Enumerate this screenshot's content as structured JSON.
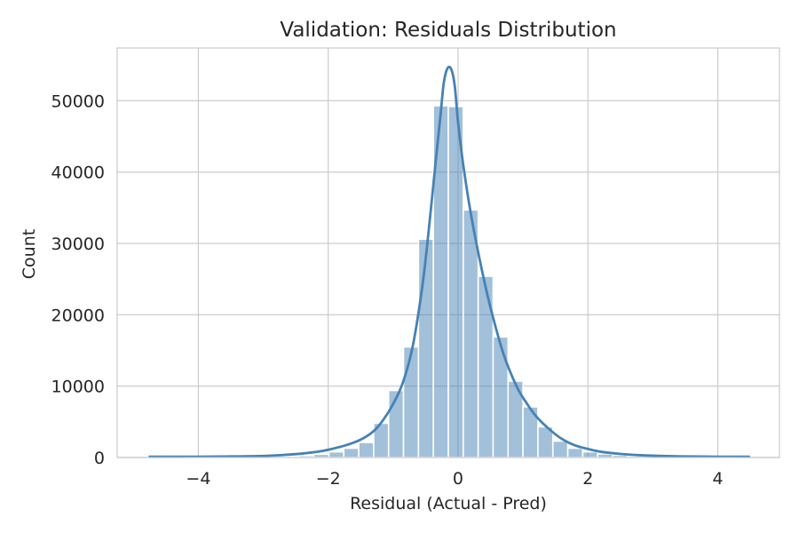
{
  "chart_data": {
    "type": "bar",
    "title": "Validation: Residuals Distribution",
    "xlabel": "Residual (Actual - Pred)",
    "ylabel": "Count",
    "xlim": [
      -5.25,
      4.95
    ],
    "ylim": [
      0,
      57400
    ],
    "x_ticks": [
      -4,
      -2,
      0,
      2,
      4
    ],
    "x_tick_labels": [
      "−4",
      "−2",
      "0",
      "2",
      "4"
    ],
    "y_ticks": [
      0,
      10000,
      20000,
      30000,
      40000,
      50000
    ],
    "y_tick_labels": [
      "0",
      "10000",
      "20000",
      "30000",
      "40000",
      "50000"
    ],
    "grid": true,
    "legend": "none",
    "bar_color": "#4682b4",
    "bar_opacity": 0.5,
    "line_color": "#4682b4",
    "bins": [
      {
        "x0": -4.75,
        "x1": -4.52,
        "count": 5
      },
      {
        "x0": -4.52,
        "x1": -4.29,
        "count": 6
      },
      {
        "x0": -4.29,
        "x1": -4.06,
        "count": 8
      },
      {
        "x0": -4.06,
        "x1": -3.83,
        "count": 10
      },
      {
        "x0": -3.83,
        "x1": -3.6,
        "count": 15
      },
      {
        "x0": -3.6,
        "x1": -3.37,
        "count": 20
      },
      {
        "x0": -3.37,
        "x1": -3.14,
        "count": 30
      },
      {
        "x0": -3.14,
        "x1": -2.91,
        "count": 45
      },
      {
        "x0": -2.91,
        "x1": -2.68,
        "count": 80
      },
      {
        "x0": -2.68,
        "x1": -2.45,
        "count": 150
      },
      {
        "x0": -2.45,
        "x1": -2.22,
        "count": 260
      },
      {
        "x0": -2.22,
        "x1": -1.99,
        "count": 450
      },
      {
        "x0": -1.99,
        "x1": -1.76,
        "count": 800
      },
      {
        "x0": -1.76,
        "x1": -1.53,
        "count": 1300
      },
      {
        "x0": -1.53,
        "x1": -1.3,
        "count": 2100
      },
      {
        "x0": -1.3,
        "x1": -1.07,
        "count": 4800
      },
      {
        "x0": -1.07,
        "x1": -0.84,
        "count": 9400
      },
      {
        "x0": -0.84,
        "x1": -0.61,
        "count": 15500
      },
      {
        "x0": -0.61,
        "x1": -0.38,
        "count": 30600
      },
      {
        "x0": -0.38,
        "x1": -0.15,
        "count": 49300
      },
      {
        "x0": -0.15,
        "x1": 0.08,
        "count": 49200
      },
      {
        "x0": 0.08,
        "x1": 0.31,
        "count": 34700
      },
      {
        "x0": 0.31,
        "x1": 0.54,
        "count": 25400
      },
      {
        "x0": 0.54,
        "x1": 0.77,
        "count": 16900
      },
      {
        "x0": 0.77,
        "x1": 1.0,
        "count": 10700
      },
      {
        "x0": 1.0,
        "x1": 1.23,
        "count": 7100
      },
      {
        "x0": 1.23,
        "x1": 1.46,
        "count": 4300
      },
      {
        "x0": 1.46,
        "x1": 1.69,
        "count": 2300
      },
      {
        "x0": 1.69,
        "x1": 1.92,
        "count": 1300
      },
      {
        "x0": 1.92,
        "x1": 2.15,
        "count": 800
      },
      {
        "x0": 2.15,
        "x1": 2.38,
        "count": 500
      },
      {
        "x0": 2.38,
        "x1": 2.61,
        "count": 320
      },
      {
        "x0": 2.61,
        "x1": 2.84,
        "count": 200
      },
      {
        "x0": 2.84,
        "x1": 3.07,
        "count": 130
      },
      {
        "x0": 3.07,
        "x1": 3.3,
        "count": 85
      },
      {
        "x0": 3.3,
        "x1": 3.53,
        "count": 55
      },
      {
        "x0": 3.53,
        "x1": 3.76,
        "count": 35
      },
      {
        "x0": 3.76,
        "x1": 3.99,
        "count": 22
      },
      {
        "x0": 3.99,
        "x1": 4.22,
        "count": 14
      },
      {
        "x0": 4.22,
        "x1": 4.48,
        "count": 8
      }
    ],
    "kde": [
      [
        -4.75,
        100
      ],
      [
        -4.0,
        110
      ],
      [
        -3.5,
        150
      ],
      [
        -3.0,
        220
      ],
      [
        -2.7,
        350
      ],
      [
        -2.4,
        550
      ],
      [
        -2.1,
        900
      ],
      [
        -1.9,
        1300
      ],
      [
        -1.7,
        1800
      ],
      [
        -1.5,
        2500
      ],
      [
        -1.3,
        3700
      ],
      [
        -1.15,
        5300
      ],
      [
        -1.0,
        7500
      ],
      [
        -0.85,
        10500
      ],
      [
        -0.7,
        15500
      ],
      [
        -0.55,
        24000
      ],
      [
        -0.45,
        32000
      ],
      [
        -0.35,
        41000
      ],
      [
        -0.27,
        48000
      ],
      [
        -0.22,
        52500
      ],
      [
        -0.16,
        54600
      ],
      [
        -0.1,
        54300
      ],
      [
        -0.05,
        52000
      ],
      [
        0.0,
        47000
      ],
      [
        0.08,
        41000
      ],
      [
        0.2,
        34000
      ],
      [
        0.35,
        27000
      ],
      [
        0.5,
        21000
      ],
      [
        0.7,
        14500
      ],
      [
        0.9,
        10000
      ],
      [
        1.05,
        7700
      ],
      [
        1.2,
        5800
      ],
      [
        1.4,
        4000
      ],
      [
        1.6,
        2600
      ],
      [
        1.8,
        1700
      ],
      [
        2.0,
        1200
      ],
      [
        2.2,
        800
      ],
      [
        2.5,
        500
      ],
      [
        2.8,
        320
      ],
      [
        3.2,
        200
      ],
      [
        3.7,
        130
      ],
      [
        4.1,
        110
      ],
      [
        4.48,
        100
      ]
    ]
  }
}
